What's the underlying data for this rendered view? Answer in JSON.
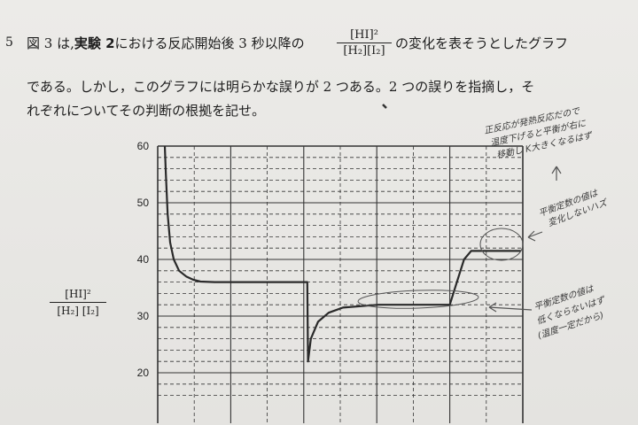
{
  "question": {
    "number": "5",
    "line1_prefix": "図 3 は,",
    "line1_bold": "実験 2",
    "line1_mid": "における反応開始後 3 秒以降の",
    "fraction_num": "[HI]²",
    "fraction_den": "[H₂][I₂]",
    "line1_suffix": "の変化を表そうとしたグラフ",
    "line2": "である。しかし，このグラフには明らかな誤りが 2 つある。2 つの誤りを指摘し，そ",
    "line3": "れぞれについてその判断の根拠を記せ。"
  },
  "chart_data": {
    "type": "line",
    "ylabel_num": "[HI]²",
    "ylabel_den": "[H₂] [I₂]",
    "ylim": [
      15,
      60
    ],
    "yticks": [
      "60",
      "50",
      "40",
      "30",
      "20"
    ],
    "grid": true,
    "series": [
      {
        "x": [
          0,
          0.03,
          0.08,
          0.15,
          0.25,
          0.4,
          0.6,
          0.8,
          1.0,
          1.4,
          2,
          3,
          4,
          4.02,
          4.1,
          4.3,
          4.6,
          5,
          6,
          7,
          8,
          8.2,
          8.4,
          8.6,
          9,
          10
        ],
        "y": [
          60,
          55,
          48,
          43,
          40,
          38,
          37,
          36.4,
          36.1,
          36,
          36,
          36,
          36,
          22,
          26,
          29,
          30.6,
          31.5,
          32,
          32,
          32,
          36,
          40,
          41.5,
          41.5,
          41.5
        ]
      }
    ]
  },
  "annotations": {
    "note_top_line1": "正反応が発熱反応だので",
    "note_top_line2": "温度下げると平衡が右に",
    "note_top_line3": "移動し K大きくなるはず",
    "note_mid_line1": "平衡定数の値は",
    "note_mid_line2": "変化しないハズ",
    "note_bottom_line1": "平衡定数の値は",
    "note_bottom_line2": "低くならないはず",
    "note_bottom_line3": "(温度一定だから)"
  }
}
